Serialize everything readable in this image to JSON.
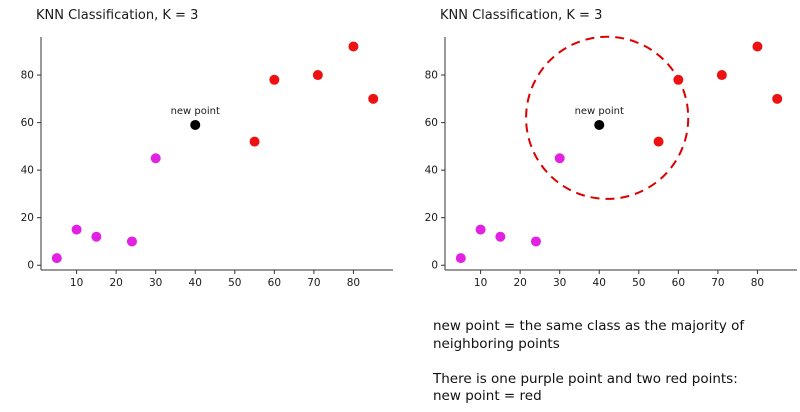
{
  "page": {
    "background": "#ffffff"
  },
  "chart_data": [
    {
      "type": "scatter",
      "title": "KNN Classification, K = 3",
      "xlabel": "",
      "ylabel": "",
      "xlim": [
        1,
        90
      ],
      "ylim": [
        -2,
        96
      ],
      "xticks": [
        10,
        20,
        30,
        40,
        50,
        60,
        70,
        80
      ],
      "yticks": [
        0,
        20,
        40,
        60,
        80
      ],
      "grid": false,
      "legend": "none",
      "series": [
        {
          "name": "purple-class",
          "color": "#e222e2",
          "points": [
            [
              5,
              3
            ],
            [
              10,
              15
            ],
            [
              15,
              12
            ],
            [
              24,
              10
            ],
            [
              30,
              45
            ]
          ]
        },
        {
          "name": "red-class",
          "color": "#ee1111",
          "points": [
            [
              55,
              52
            ],
            [
              60,
              78
            ],
            [
              71,
              80
            ],
            [
              80,
              92
            ],
            [
              85,
              70
            ]
          ]
        },
        {
          "name": "new-point",
          "color": "#000000",
          "points": [
            [
              40,
              59
            ]
          ]
        }
      ],
      "annotation": {
        "label": "new point",
        "x": 40,
        "y": 59
      }
    },
    {
      "type": "scatter",
      "title": "KNN Classification, K = 3",
      "xlabel": "",
      "ylabel": "",
      "xlim": [
        1,
        90
      ],
      "ylim": [
        -2,
        96
      ],
      "xticks": [
        10,
        20,
        30,
        40,
        50,
        60,
        70,
        80
      ],
      "yticks": [
        0,
        20,
        40,
        60,
        80
      ],
      "grid": false,
      "legend": "none",
      "series": [
        {
          "name": "purple-class",
          "color": "#e222e2",
          "points": [
            [
              5,
              3
            ],
            [
              10,
              15
            ],
            [
              15,
              12
            ],
            [
              24,
              10
            ],
            [
              30,
              45
            ]
          ]
        },
        {
          "name": "red-class",
          "color": "#ee1111",
          "points": [
            [
              55,
              52
            ],
            [
              60,
              78
            ],
            [
              71,
              80
            ],
            [
              80,
              92
            ],
            [
              85,
              70
            ]
          ]
        },
        {
          "name": "new-point",
          "color": "#000000",
          "points": [
            [
              40,
              59
            ]
          ]
        }
      ],
      "annotation": {
        "label": "new point",
        "x": 40,
        "y": 59
      },
      "neighborhood": {
        "cx": 42,
        "cy": 62,
        "r_x": 20.5,
        "color": "#dd0000",
        "dash": "9 6"
      }
    }
  ],
  "captions": [
    {
      "text": "new point = the same class as the majority of\nneighboring points"
    },
    {
      "text": "There is one purple point and two red points:\nnew point = red"
    }
  ]
}
